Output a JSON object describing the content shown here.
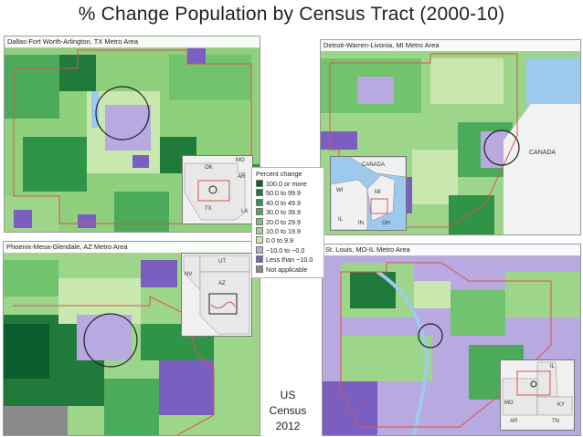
{
  "title": "% Change Population by Census Tract (2000-10)",
  "panels": [
    {
      "title": "Dallas-Fort Worth-Arlington, TX Metro Area"
    },
    {
      "title": "Detroit-Warren-Livonia, MI Metro Area"
    },
    {
      "title": "Phoenix-Mesa-Glendale, AZ Metro Area"
    },
    {
      "title": "St. Louis, MO-IL Metro Area"
    }
  ],
  "insets": {
    "dallas": [
      "MO",
      "OK",
      "AR",
      "TX",
      "LA"
    ],
    "detroit": [
      "CANADA",
      "WI",
      "MI",
      "IL",
      "IN",
      "OH"
    ],
    "detroit_map_label": "CANADA",
    "phoenix": [
      "UT",
      "NV",
      "AZ"
    ],
    "stlouis": [
      "IL",
      "MO",
      "KY",
      "AR",
      "TN"
    ]
  },
  "legend": {
    "title": "Percent change",
    "items": [
      {
        "label": "100.0 or more",
        "color": "#0d5e2e"
      },
      {
        "label": "50.0 to 99.9",
        "color": "#1f7a3c"
      },
      {
        "label": "40.0 to 49.9",
        "color": "#2f9448"
      },
      {
        "label": "30.0 to 39.9",
        "color": "#4cab5a"
      },
      {
        "label": "20.0 to 29.9",
        "color": "#72c36d"
      },
      {
        "label": "10.0 to 19.9",
        "color": "#9dd68b"
      },
      {
        "label": "0.0 to 9.9",
        "color": "#c8e8b0"
      },
      {
        "label": "−10.0 to −0.0",
        "color": "#b8a9e0"
      },
      {
        "label": "Less than −10.0",
        "color": "#7a5fc0"
      },
      {
        "label": "Not applicable",
        "color": "#8a8a8a"
      }
    ]
  },
  "credit": {
    "line1": "US",
    "line2": "Census",
    "line3": "2012"
  },
  "colors": {
    "water": "#9ec9ee",
    "boundary": "#d9534f",
    "border": "#9a9a9a"
  }
}
